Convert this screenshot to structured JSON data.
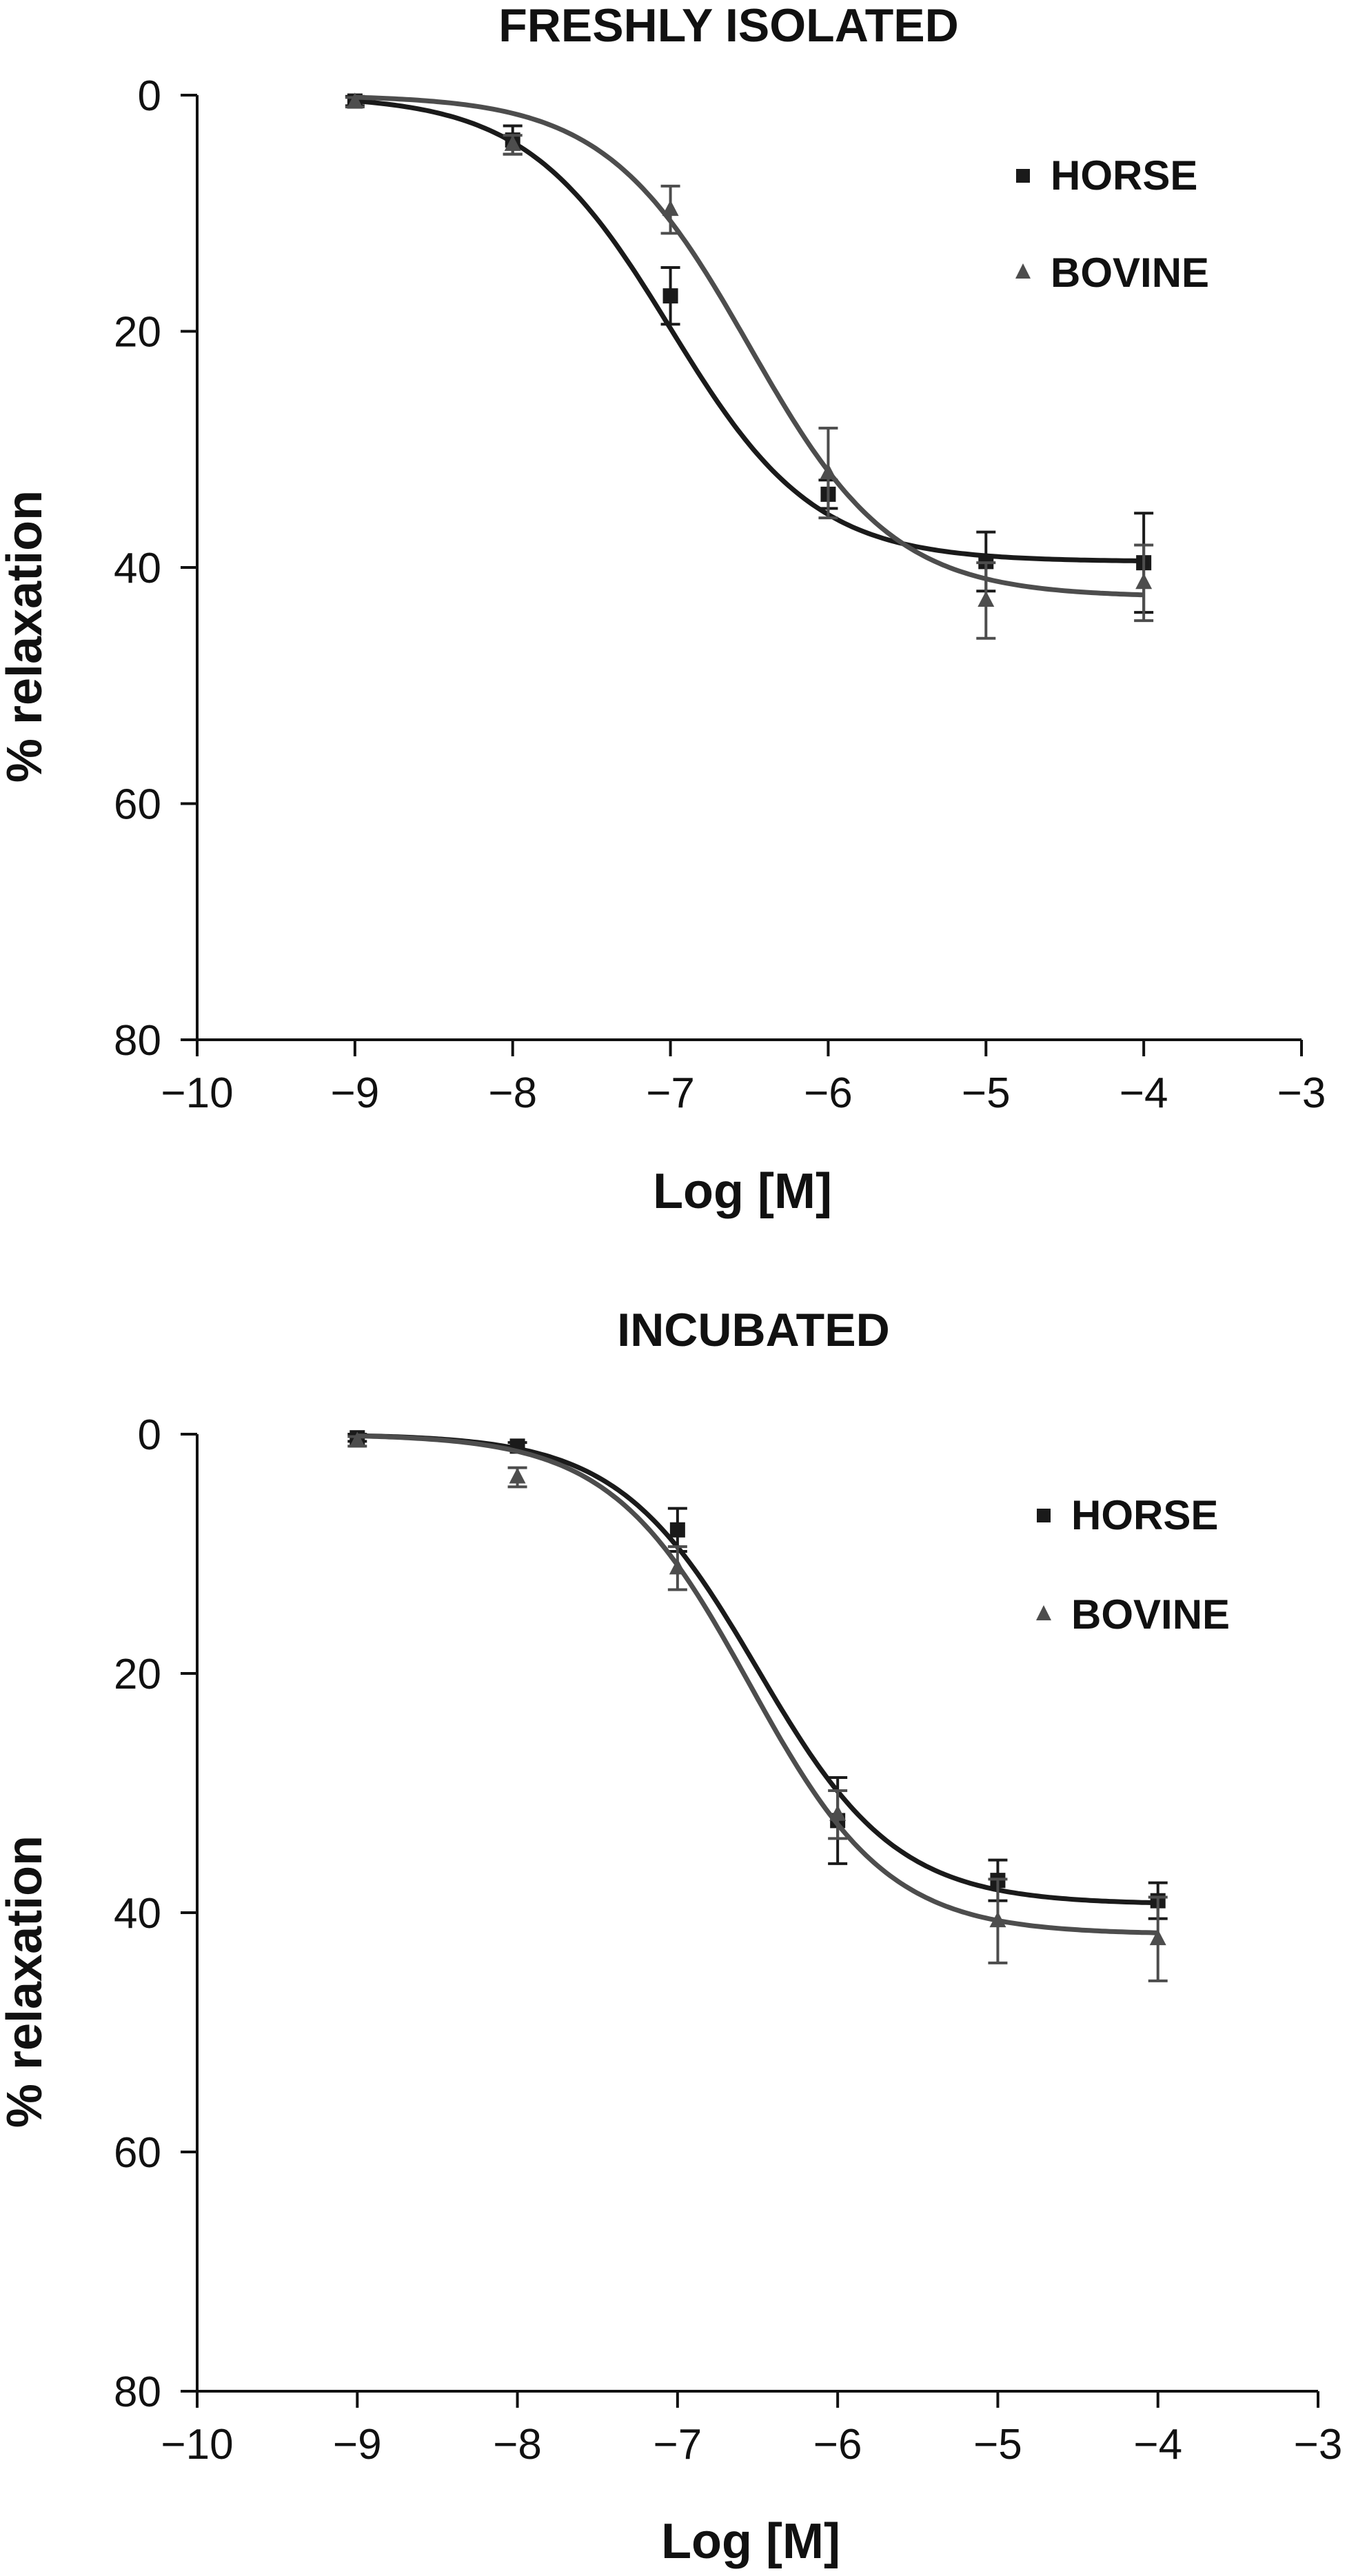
{
  "colors": {
    "horse": "#1a1a1a",
    "bovine": "#4d4d4d",
    "axis": "#111111"
  },
  "chart_data": [
    {
      "type": "scatter",
      "title": "FRESHLY ISOLATED",
      "xlabel": "Log [M]",
      "ylabel": "% relaxation",
      "xlim": [
        -10,
        -3
      ],
      "ylim": [
        0,
        80
      ],
      "y_inverted": true,
      "xticks": [
        -10,
        -9,
        -8,
        -7,
        -6,
        -5,
        -4,
        -3
      ],
      "xtick_labels": [
        "−10",
        "−9",
        "−8",
        "−7",
        "−6",
        "−5",
        "−4",
        "−3"
      ],
      "yticks": [
        0,
        20,
        40,
        60,
        80
      ],
      "ytick_labels": [
        "0",
        "20",
        "40",
        "60",
        "80"
      ],
      "legend_position": "top-right",
      "series": [
        {
          "name": "HORSE",
          "marker": "square",
          "color": "#1a1a1a",
          "x": [
            -9,
            -8,
            -7,
            -6,
            -5,
            -4
          ],
          "y": [
            0.5,
            3.8,
            17.0,
            33.8,
            39.5,
            39.6
          ],
          "err": [
            0.4,
            1.2,
            2.4,
            1.2,
            2.5,
            4.2
          ],
          "fit": {
            "bottom": 0,
            "top": 39.5,
            "logEC50": -7.0,
            "hill": 0.95
          }
        },
        {
          "name": "BOVINE",
          "marker": "triangle",
          "color": "#4d4d4d",
          "x": [
            -9,
            -8,
            -7,
            -6,
            -5,
            -4
          ],
          "y": [
            0.6,
            4.2,
            9.7,
            32.0,
            42.8,
            41.3
          ],
          "err": [
            0.4,
            0.8,
            2.0,
            3.8,
            3.2,
            3.2
          ],
          "fit": {
            "bottom": 0,
            "top": 42.5,
            "logEC50": -6.5,
            "hill": 0.95
          }
        }
      ]
    },
    {
      "type": "scatter",
      "title": "INCUBATED",
      "xlabel": "Log [M]",
      "ylabel": "% relaxation",
      "xlim": [
        -10,
        -3
      ],
      "ylim": [
        0,
        80
      ],
      "y_inverted": true,
      "xticks": [
        -10,
        -9,
        -8,
        -7,
        -6,
        -5,
        -4,
        -3
      ],
      "xtick_labels": [
        "−10",
        "−9",
        "−8",
        "−7",
        "−6",
        "−5",
        "−4",
        "−3"
      ],
      "yticks": [
        0,
        20,
        40,
        60,
        80
      ],
      "ytick_labels": [
        "0",
        "20",
        "40",
        "60",
        "80"
      ],
      "legend_position": "top-right",
      "series": [
        {
          "name": "HORSE",
          "marker": "square",
          "color": "#1a1a1a",
          "x": [
            -9,
            -8,
            -7,
            -6,
            -5,
            -4
          ],
          "y": [
            0.3,
            1.0,
            8.0,
            32.3,
            37.3,
            39.0
          ],
          "err": [
            0.3,
            0.3,
            1.8,
            3.6,
            1.7,
            1.5
          ],
          "fit": {
            "bottom": 0,
            "top": 39.3,
            "logEC50": -6.5,
            "hill": 1.0
          }
        },
        {
          "name": "BOVINE",
          "marker": "triangle",
          "color": "#4d4d4d",
          "x": [
            -9,
            -8,
            -7,
            -6,
            -5,
            -4
          ],
          "y": [
            0.6,
            3.6,
            11.2,
            31.8,
            40.7,
            42.2
          ],
          "err": [
            0.4,
            0.8,
            1.8,
            2.0,
            3.5,
            3.5
          ],
          "fit": {
            "bottom": 0,
            "top": 41.8,
            "logEC50": -6.55,
            "hill": 1.0
          }
        }
      ]
    }
  ]
}
